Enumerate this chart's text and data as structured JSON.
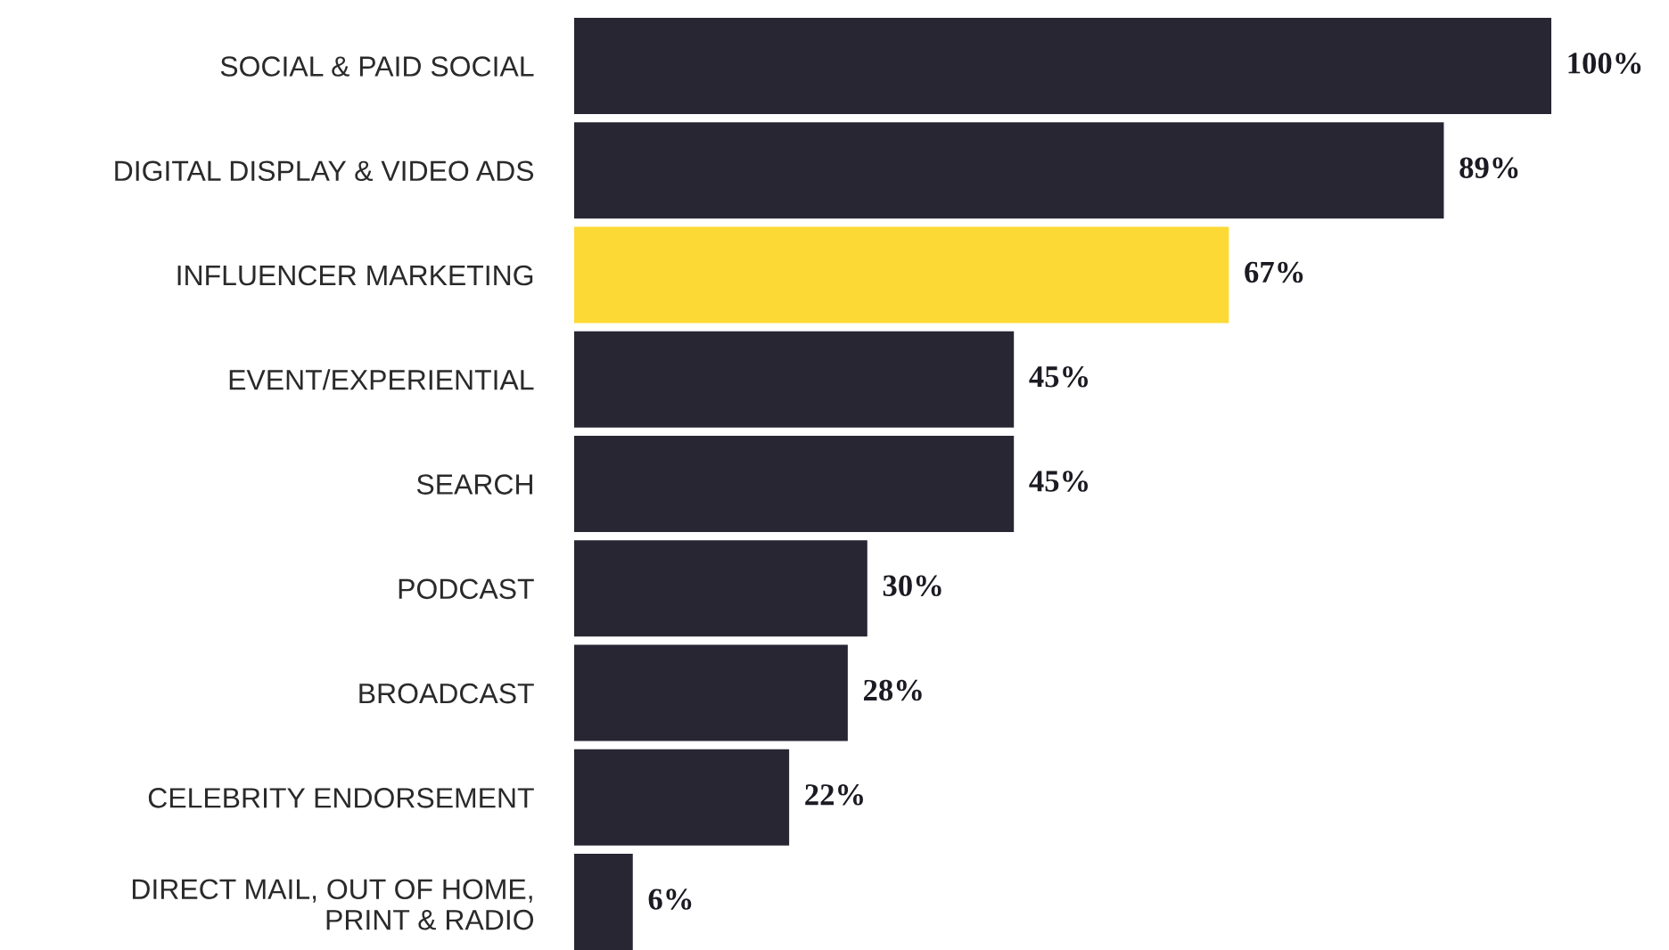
{
  "chart_data": {
    "type": "bar",
    "orientation": "horizontal",
    "categories": [
      "SOCIAL & PAID SOCIAL",
      "DIGITAL DISPLAY & VIDEO ADS",
      "INFLUENCER MARKETING",
      "EVENT/EXPERIENTIAL",
      "SEARCH",
      "PODCAST",
      "BROADCAST",
      "CELEBRITY ENDORSEMENT",
      "DIRECT MAIL, OUT OF HOME,\nPRINT & RADIO"
    ],
    "values": [
      100,
      89,
      67,
      45,
      45,
      30,
      28,
      22,
      6
    ],
    "colors": [
      "#282633",
      "#282633",
      "#fcd934",
      "#282633",
      "#282633",
      "#282633",
      "#282633",
      "#282633",
      "#282633"
    ],
    "value_labels": [
      "100%",
      "89%",
      "67%",
      "45%",
      "45%",
      "30%",
      "28%",
      "22%",
      "6%"
    ],
    "grid": false,
    "legend": false,
    "tick_labels": "y"
  }
}
